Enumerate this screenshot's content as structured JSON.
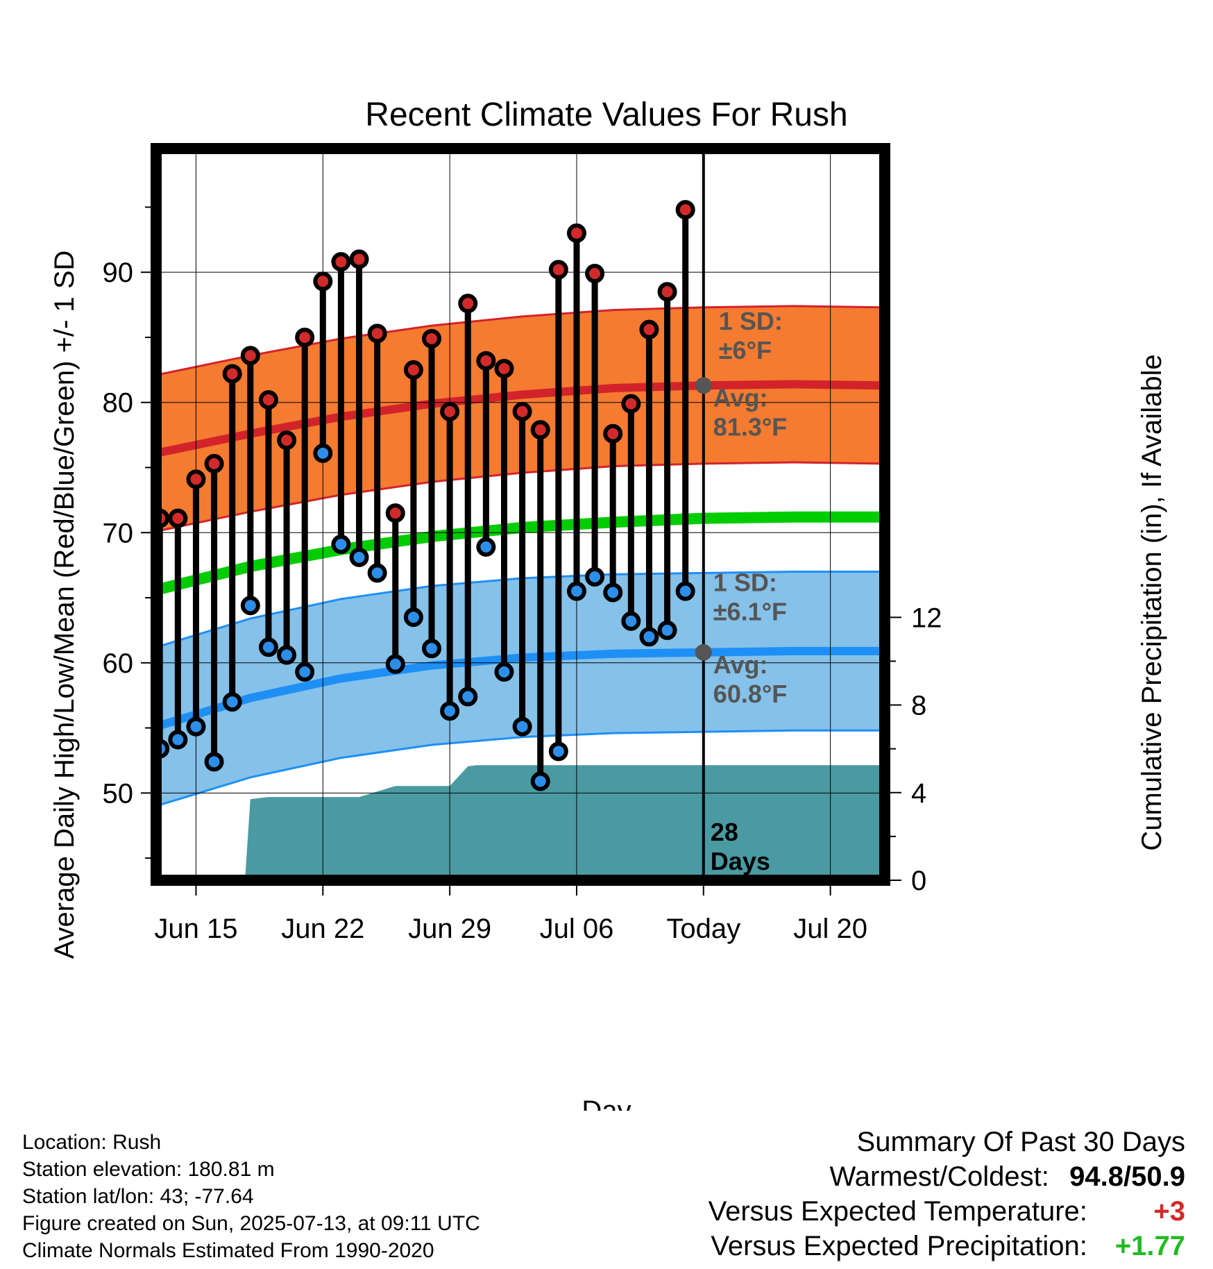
{
  "chart_data": {
    "type": "line",
    "title": "Recent Climate Values For Rush",
    "xlabel": "Day",
    "ylabel_left": "Average Daily High/Low/Mean (Red/Blue/Green) +/- 1 SD",
    "ylabel_right": "Cumulative Precipitation (in), If Available",
    "ylim_left": [
      43.3,
      99.5
    ],
    "ylim_right": [
      0,
      33.4
    ],
    "xlim_days": [
      -30.2,
      10.0
    ],
    "x_ticks": [
      {
        "day": -28,
        "label": "Jun 15"
      },
      {
        "day": -21,
        "label": "Jun 22"
      },
      {
        "day": -14,
        "label": "Jun 29"
      },
      {
        "day": -7,
        "label": "Jul 06"
      },
      {
        "day": 0,
        "label": "Today"
      },
      {
        "day": 7,
        "label": "Jul 20"
      }
    ],
    "y_ticks_left": [
      50,
      60,
      70,
      80,
      90
    ],
    "y_ticks_right": [
      0,
      4,
      8,
      12
    ],
    "today_marker_label": [
      "28",
      "Days"
    ],
    "observed": {
      "days": [
        -30,
        -29,
        -28,
        -27,
        -26,
        -25,
        -24,
        -23,
        -22,
        -21,
        -20,
        -19,
        -18,
        -17,
        -16,
        -15,
        -14,
        -13,
        -12,
        -11,
        -10,
        -9,
        -8,
        -7,
        -6,
        -5,
        -4,
        -3,
        -2,
        -1
      ],
      "high": [
        71.1,
        71.1,
        74.1,
        75.3,
        82.2,
        83.6,
        80.2,
        77.1,
        85.0,
        89.3,
        90.8,
        91.0,
        85.3,
        71.5,
        82.5,
        84.9,
        79.3,
        87.6,
        83.2,
        82.6,
        79.3,
        77.9,
        90.2,
        93.0,
        89.9,
        77.6,
        79.9,
        85.6,
        88.5,
        94.8
      ],
      "low": [
        53.4,
        54.1,
        55.1,
        52.4,
        57.0,
        64.4,
        61.2,
        60.6,
        59.3,
        76.1,
        69.1,
        68.1,
        66.9,
        59.9,
        63.5,
        61.1,
        56.3,
        57.4,
        68.9,
        59.3,
        55.1,
        50.9,
        53.2,
        65.5,
        66.6,
        65.4,
        63.2,
        62.0,
        62.5,
        65.5
      ],
      "low_above_mean": [
        false,
        false,
        false,
        false,
        false,
        false,
        false,
        false,
        false,
        true,
        false,
        false,
        false,
        false,
        false,
        false,
        false,
        false,
        false,
        false,
        false,
        false,
        false,
        false,
        false,
        false,
        false,
        false,
        false,
        false
      ]
    },
    "normals": {
      "days": [
        -30.2,
        -25,
        -20,
        -15,
        -10,
        -5,
        0,
        5,
        10
      ],
      "avg_high": [
        76.1,
        77.6,
        78.9,
        79.9,
        80.6,
        81.1,
        81.3,
        81.4,
        81.3
      ],
      "avg_low": [
        55.1,
        57.3,
        58.8,
        59.8,
        60.4,
        60.7,
        60.8,
        60.9,
        60.9
      ],
      "avg_mean": [
        65.6,
        67.4,
        68.7,
        69.7,
        70.4,
        70.8,
        71.1,
        71.2,
        71.2
      ],
      "high_sd": 6.0,
      "low_sd": 6.1
    },
    "precipitation_cumulative": {
      "days": [
        -30.2,
        -25.3,
        -25,
        -24,
        -19,
        -17,
        -15,
        -14,
        -13,
        -12.5,
        -10,
        10
      ],
      "values": [
        0,
        0,
        3.7,
        3.8,
        3.8,
        4.3,
        4.3,
        4.3,
        5.2,
        5.25,
        5.25,
        5.25
      ]
    },
    "annotations": {
      "high_sd": [
        "1 SD:",
        "±6°F"
      ],
      "high_avg": [
        "Avg:",
        "81.3°F"
      ],
      "low_sd": [
        "1 SD:",
        "±6.1°F"
      ],
      "low_avg": [
        "Avg:",
        "60.8°F"
      ]
    },
    "colors": {
      "high_band": "#f47b30",
      "high_line": "#d2232a",
      "low_band": "#85c1e8",
      "low_line": "#1e8ff5",
      "mean_line": "#00cc00",
      "precip": "#4a9aa2",
      "high_dot": "#d12a2a",
      "low_dot": "#2c8ee8",
      "annotation": "#555555"
    }
  },
  "info": {
    "location": "Location: Rush",
    "elevation": "Station elevation: 180.81 m",
    "latlon": "Station lat/lon: 43; -77.64",
    "created": "Figure created on Sun, 2025-07-13, at 09:11 UTC",
    "normals": "Climate Normals Estimated From 1990-2020"
  },
  "summary": {
    "title": "Summary Of Past 30 Days",
    "warmest_label": "Warmest/Coldest:",
    "warmest_value": "94.8/50.9",
    "temp_label": "Versus Expected Temperature:",
    "temp_value": "+3",
    "temp_color": "#d12a2a",
    "precip_label": "Versus Expected Precipitation:",
    "precip_value": "+1.77",
    "precip_color": "#22bb22"
  }
}
